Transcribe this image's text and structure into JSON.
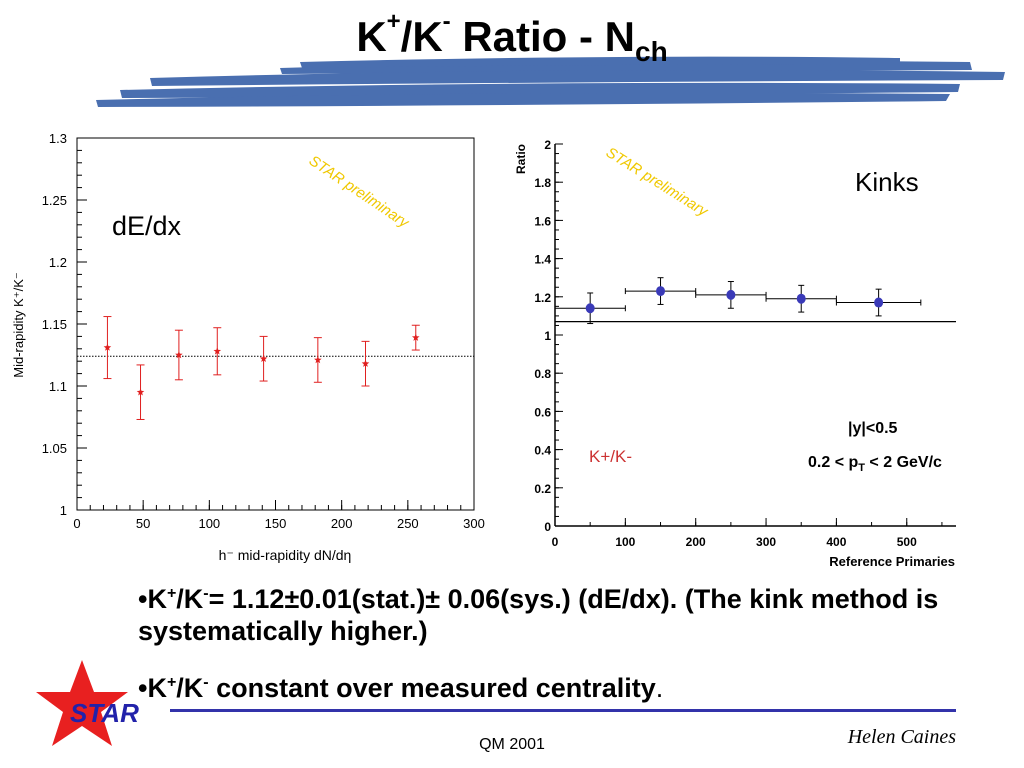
{
  "slide": {
    "title_main": "K",
    "title_sup1": "+",
    "title_slash": "/K",
    "title_sup2": "-",
    "title_rest": " Ratio - N",
    "title_sub": "ch",
    "brush_color": "#4a6fb0"
  },
  "chart_data": [
    {
      "type": "scatter",
      "label": "dE/dx",
      "watermark": "STAR preliminary",
      "xlabel": "h⁻ mid-rapidity dN/dη",
      "ylabel": "Mid-rapidity K⁺/K⁻",
      "xlim": [
        0,
        300
      ],
      "ylim": [
        1.0,
        1.3
      ],
      "x_ticks": [
        "0",
        "50",
        "100",
        "150",
        "200",
        "250",
        "300"
      ],
      "y_ticks": [
        "1",
        "1.05",
        "1.1",
        "1.15",
        "1.2",
        "1.25",
        "1.3"
      ],
      "reference_line": 1.124,
      "marker_color": "#e02020",
      "points": [
        {
          "x": 23,
          "y": 1.131,
          "err": 0.025
        },
        {
          "x": 48,
          "y": 1.095,
          "err": 0.022
        },
        {
          "x": 77,
          "y": 1.125,
          "err": 0.02
        },
        {
          "x": 106,
          "y": 1.128,
          "err": 0.019
        },
        {
          "x": 141,
          "y": 1.122,
          "err": 0.018
        },
        {
          "x": 182,
          "y": 1.121,
          "err": 0.018
        },
        {
          "x": 218,
          "y": 1.118,
          "err": 0.018
        },
        {
          "x": 256,
          "y": 1.139,
          "err": 0.01
        }
      ]
    },
    {
      "type": "scatter",
      "label": "Kinks",
      "watermark": "STAR preliminary",
      "xlabel": "Reference Primaries",
      "ylabel": "Ratio",
      "xlim": [
        0,
        570
      ],
      "ylim": [
        0,
        2
      ],
      "x_ticks": [
        "0",
        "100",
        "200",
        "300",
        "400",
        "500"
      ],
      "x_tick_values": [
        0,
        100,
        200,
        300,
        400,
        500
      ],
      "y_ticks": [
        "0",
        "0.2",
        "0.4",
        "0.6",
        "0.8",
        "1",
        "1.2",
        "1.4",
        "1.6",
        "1.8",
        "2"
      ],
      "reference_line": 1.07,
      "marker_color": "#3a3ab8",
      "series_label": "K+/K-",
      "cut1": "|y|<0.5",
      "cut2_pre": "0.2 < p",
      "cut2_sub": "T",
      "cut2_post": " < 2 GeV/c",
      "points": [
        {
          "x": 50,
          "y": 1.14,
          "xerr": 50,
          "err": 0.08
        },
        {
          "x": 150,
          "y": 1.23,
          "xerr": 50,
          "err": 0.07
        },
        {
          "x": 250,
          "y": 1.21,
          "xerr": 50,
          "err": 0.07
        },
        {
          "x": 350,
          "y": 1.19,
          "xerr": 50,
          "err": 0.07
        },
        {
          "x": 460,
          "y": 1.17,
          "xerr": 60,
          "err": 0.07
        }
      ]
    }
  ],
  "bullets": {
    "b1_a": "•K",
    "b1_sup1": "+",
    "b1_b": "/K",
    "b1_sup2": "-",
    "b1_c": "= 1.12±0.01(stat.)± 0.06(sys.)  (dE/dx). (The kink method is systematically higher.)",
    "b2_a": "•K",
    "b2_sup1": "+",
    "b2_b": "/K",
    "b2_sup2": "-",
    "b2_c": " constant over measured centrality",
    "b2_d": "."
  },
  "footer": {
    "logo_text": "STAR",
    "center": "QM 2001",
    "author": "Helen Caines",
    "logo_star_color": "#e82020",
    "logo_text_color": "#2222aa",
    "line_color": "#3333aa"
  }
}
